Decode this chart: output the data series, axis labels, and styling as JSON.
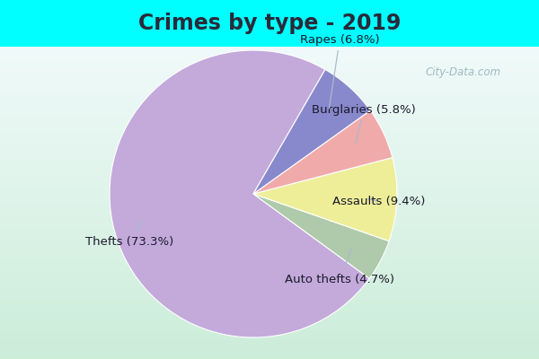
{
  "title": "Crimes by type - 2019",
  "labels": [
    "Thefts",
    "Auto thefts",
    "Assaults",
    "Burglaries",
    "Rapes"
  ],
  "values": [
    73.3,
    4.7,
    9.4,
    5.8,
    6.8
  ],
  "colors": [
    "#C3AADB",
    "#AECAAA",
    "#EEEE99",
    "#F0AAAA",
    "#8888CC"
  ],
  "label_texts": [
    "Thefts (73.3%)",
    "Auto thefts (4.7%)",
    "Assaults (9.4%)",
    "Burglaries (5.8%)",
    "Rapes (6.8%)"
  ],
  "background_top": "#00FFFF",
  "background_main_top": "#EAFAFF",
  "background_main_bottom": "#C8EDD8",
  "title_fontsize": 17,
  "title_color": "#2a2a3a",
  "label_fontsize": 9.5
}
